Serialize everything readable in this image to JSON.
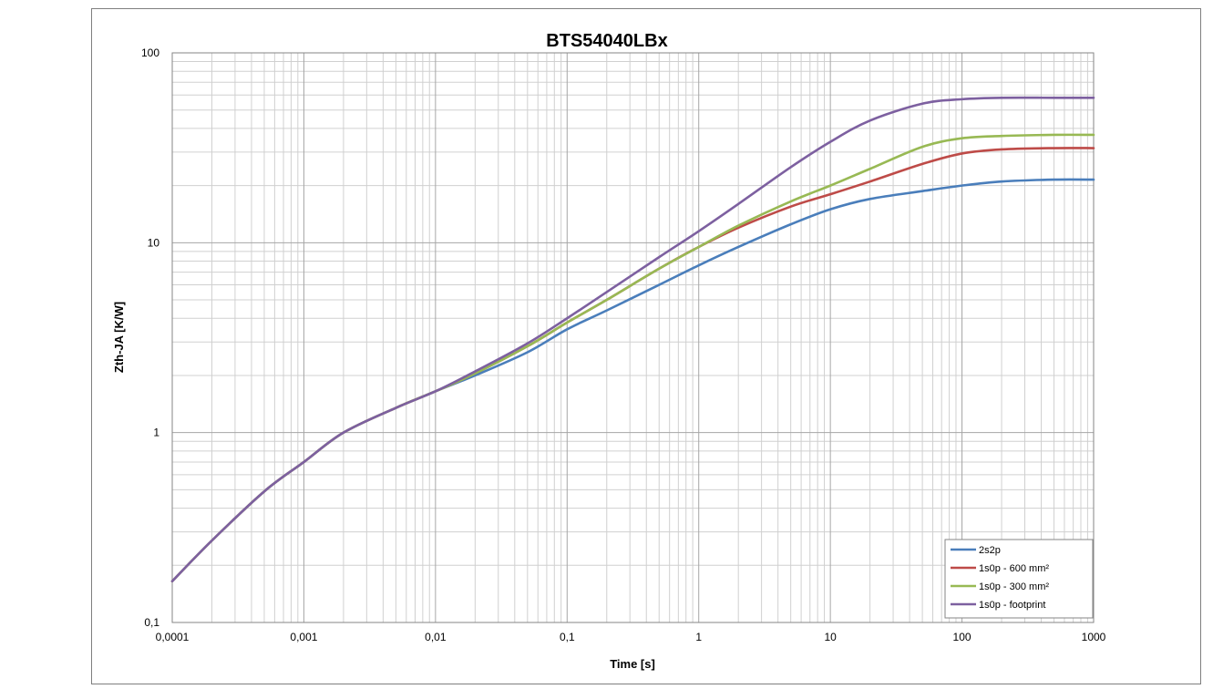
{
  "chart_data": {
    "type": "line",
    "title": "BTS54040LBx",
    "xlabel": "Time [s]",
    "ylabel": "Zth-JA [K/W]",
    "x_scale": "log",
    "y_scale": "log",
    "xlim": [
      0.0001,
      1000
    ],
    "ylim": [
      0.1,
      100
    ],
    "x_tick_labels": [
      "0,0001",
      "0,001",
      "0,01",
      "0,1",
      "1",
      "10",
      "100",
      "1000"
    ],
    "y_tick_labels": [
      "0,1",
      "1",
      "10",
      "100"
    ],
    "grid": true,
    "legend_position": "bottom-right",
    "x": [
      0.0001,
      0.0002,
      0.0005,
      0.001,
      0.002,
      0.005,
      0.01,
      0.02,
      0.05,
      0.1,
      0.2,
      0.5,
      1,
      2,
      5,
      10,
      20,
      50,
      100,
      200,
      500,
      1000
    ],
    "series": [
      {
        "name": "2s2p",
        "color": "#4a7ebb",
        "values": [
          0.165,
          0.27,
          0.49,
          0.7,
          1.0,
          1.35,
          1.65,
          2.0,
          2.65,
          3.5,
          4.4,
          6.0,
          7.6,
          9.5,
          12.5,
          15.0,
          17.0,
          18.7,
          20.0,
          21.0,
          21.5,
          21.5
        ]
      },
      {
        "name": "1s0p - 600 mm²",
        "color": "#be4b48",
        "values": [
          0.165,
          0.27,
          0.49,
          0.7,
          1.0,
          1.35,
          1.65,
          2.05,
          2.85,
          3.8,
          5.0,
          7.3,
          9.5,
          12.0,
          15.5,
          18.0,
          21.0,
          26.0,
          29.5,
          31.0,
          31.5,
          31.5
        ]
      },
      {
        "name": "1s0p - 300 mm²",
        "color": "#98b954",
        "values": [
          0.165,
          0.27,
          0.49,
          0.7,
          1.0,
          1.35,
          1.65,
          2.05,
          2.85,
          3.8,
          5.0,
          7.3,
          9.5,
          12.3,
          16.5,
          20.0,
          24.5,
          32.0,
          35.5,
          36.5,
          37.0,
          37.0
        ]
      },
      {
        "name": "1s0p - footprint",
        "color": "#7d60a0",
        "values": [
          0.165,
          0.27,
          0.49,
          0.7,
          1.0,
          1.35,
          1.65,
          2.1,
          2.95,
          4.0,
          5.5,
          8.4,
          11.5,
          16.0,
          25.0,
          34.0,
          44.0,
          54.0,
          57.0,
          58.0,
          58.0,
          58.0
        ]
      }
    ]
  }
}
